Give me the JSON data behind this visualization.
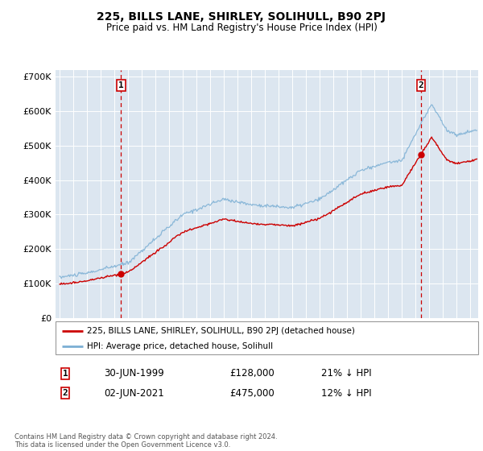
{
  "title": "225, BILLS LANE, SHIRLEY, SOLIHULL, B90 2PJ",
  "subtitle": "Price paid vs. HM Land Registry's House Price Index (HPI)",
  "bg_color": "#dce6f0",
  "yticks": [
    0,
    100000,
    200000,
    300000,
    400000,
    500000,
    600000,
    700000
  ],
  "ytick_labels": [
    "£0",
    "£100K",
    "£200K",
    "£300K",
    "£400K",
    "£500K",
    "£600K",
    "£700K"
  ],
  "sale1_date": 1999.49,
  "sale1_price": 128000,
  "sale1_label": "1",
  "sale1_x_label": "30-JUN-1999",
  "sale1_price_label": "£128,000",
  "sale1_hpi_label": "21% ↓ HPI",
  "sale2_date": 2021.42,
  "sale2_price": 475000,
  "sale2_label": "2",
  "sale2_x_label": "02-JUN-2021",
  "sale2_price_label": "£475,000",
  "sale2_hpi_label": "12% ↓ HPI",
  "red_line_color": "#cc0000",
  "blue_line_color": "#7bafd4",
  "dashed_line_color": "#cc0000",
  "marker_color": "#cc0000",
  "legend_label_red": "225, BILLS LANE, SHIRLEY, SOLIHULL, B90 2PJ (detached house)",
  "legend_label_blue": "HPI: Average price, detached house, Solihull",
  "footer": "Contains HM Land Registry data © Crown copyright and database right 2024.\nThis data is licensed under the Open Government Licence v3.0."
}
